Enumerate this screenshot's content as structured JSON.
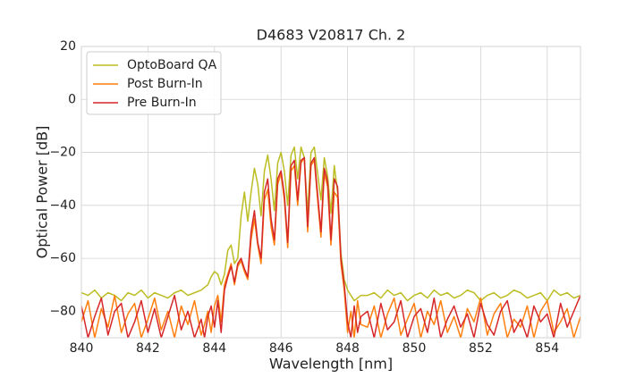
{
  "chart_data": {
    "type": "line",
    "title": "D4683 V20817 Ch. 2",
    "x_label": "Wavelength [nm]",
    "y_label": "Optical Power [dB]",
    "x": [
      840,
      840.2,
      840.4,
      840.6,
      840.8,
      841,
      841.2,
      841.4,
      841.6,
      841.8,
      842,
      842.2,
      842.4,
      842.6,
      842.8,
      843,
      843.2,
      843.4,
      843.6,
      843.7,
      843.8,
      843.9,
      844,
      844.1,
      844.2,
      844.3,
      844.4,
      844.5,
      844.6,
      844.7,
      844.8,
      844.9,
      845,
      845.1,
      845.2,
      845.3,
      845.4,
      845.5,
      845.6,
      845.7,
      845.8,
      845.9,
      846,
      846.1,
      846.2,
      846.3,
      846.4,
      846.5,
      846.6,
      846.7,
      846.8,
      846.9,
      847,
      847.1,
      847.2,
      847.3,
      847.4,
      847.5,
      847.6,
      847.7,
      847.8,
      847.9,
      848,
      848.1,
      848.2,
      848.3,
      848.4,
      848.6,
      848.8,
      849,
      849.2,
      849.4,
      849.6,
      849.8,
      850,
      850.2,
      850.4,
      850.6,
      850.8,
      851,
      851.2,
      851.4,
      851.6,
      851.8,
      852,
      852.2,
      852.4,
      852.6,
      852.8,
      853,
      853.2,
      853.4,
      853.6,
      853.8,
      854,
      854.2,
      854.4,
      854.6,
      854.8,
      855
    ],
    "series": [
      {
        "name": "OptoBoard QA",
        "color": "#bcbd22",
        "values": [
          -73,
          -74,
          -72,
          -75,
          -73,
          -74,
          -76,
          -73,
          -74,
          -72,
          -75,
          -73,
          -74,
          -75,
          -73,
          -72,
          -74,
          -73,
          -72,
          -71,
          -70,
          -67,
          -65,
          -66,
          -70,
          -66,
          -57,
          -55,
          -62,
          -60,
          -44,
          -35,
          -46,
          -35,
          -26,
          -32,
          -44,
          -27,
          -21,
          -30,
          -42,
          -24,
          -20,
          -27,
          -40,
          -21,
          -18,
          -30,
          -18,
          -22,
          -43,
          -20,
          -18,
          -28,
          -38,
          -22,
          -29,
          -43,
          -25,
          -35,
          -58,
          -68,
          -72,
          -74,
          -76,
          -75,
          -74,
          -74,
          -73,
          -75,
          -72,
          -74,
          -73,
          -76,
          -74,
          -73,
          -75,
          -72,
          -74,
          -73,
          -75,
          -74,
          -72,
          -73,
          -76,
          -74,
          -73,
          -75,
          -74,
          -72,
          -73,
          -75,
          -74,
          -73,
          -76,
          -72,
          -74,
          -73,
          -75,
          -74
        ]
      },
      {
        "name": "Post Burn-In",
        "color": "#ff7f0e",
        "values": [
          -84,
          -76,
          -90,
          -79,
          -86,
          -74,
          -88,
          -81,
          -77,
          -90,
          -83,
          -75,
          -87,
          -80,
          -90,
          -78,
          -85,
          -76,
          -89,
          -85,
          -80,
          -88,
          -78,
          -74,
          -84,
          -70,
          -66,
          -62,
          -70,
          -63,
          -61,
          -65,
          -68,
          -53,
          -45,
          -55,
          -62,
          -38,
          -34,
          -48,
          -55,
          -32,
          -28,
          -38,
          -56,
          -27,
          -25,
          -40,
          -24,
          -22,
          -50,
          -25,
          -23,
          -38,
          -52,
          -28,
          -33,
          -55,
          -35,
          -37,
          -62,
          -72,
          -88,
          -80,
          -90,
          -76,
          -85,
          -86,
          -78,
          -90,
          -81,
          -75,
          -89,
          -83,
          -77,
          -90,
          -80,
          -85,
          -76,
          -88,
          -82,
          -90,
          -79,
          -84,
          -75,
          -89,
          -81,
          -77,
          -90,
          -83,
          -86,
          -78,
          -90,
          -80,
          -76,
          -88,
          -84,
          -79,
          -90,
          -82
        ]
      },
      {
        "name": "Pre Burn-In",
        "color": "#d62728",
        "values": [
          -78,
          -90,
          -82,
          -75,
          -89,
          -80,
          -77,
          -90,
          -84,
          -76,
          -88,
          -79,
          -90,
          -82,
          -74,
          -87,
          -80,
          -90,
          -83,
          -90,
          -82,
          -78,
          -86,
          -76,
          -88,
          -72,
          -67,
          -63,
          -69,
          -62,
          -60,
          -64,
          -67,
          -50,
          -42,
          -54,
          -60,
          -35,
          -30,
          -45,
          -53,
          -30,
          -27,
          -36,
          -54,
          -25,
          -23,
          -38,
          -23,
          -22,
          -48,
          -24,
          -22,
          -36,
          -50,
          -26,
          -31,
          -53,
          -30,
          -33,
          -60,
          -70,
          -84,
          -90,
          -78,
          -88,
          -82,
          -80,
          -90,
          -77,
          -87,
          -84,
          -76,
          -90,
          -82,
          -79,
          -88,
          -75,
          -90,
          -83,
          -78,
          -86,
          -81,
          -90,
          -77,
          -85,
          -89,
          -80,
          -76,
          -88,
          -83,
          -90,
          -78,
          -84,
          -81,
          -90,
          -77,
          -86,
          -80,
          -74
        ]
      }
    ],
    "xlim": [
      840,
      855
    ],
    "xticks": [
      840,
      842,
      844,
      846,
      848,
      850,
      852,
      854
    ],
    "ylim": [
      -90,
      20
    ],
    "yticks": [
      {
        "value": -80,
        "label": "−80"
      },
      {
        "value": -60,
        "label": "−60"
      },
      {
        "value": -40,
        "label": "−40"
      },
      {
        "value": -20,
        "label": "−20"
      },
      0,
      20
    ],
    "grid": true,
    "legend": "upper left"
  }
}
